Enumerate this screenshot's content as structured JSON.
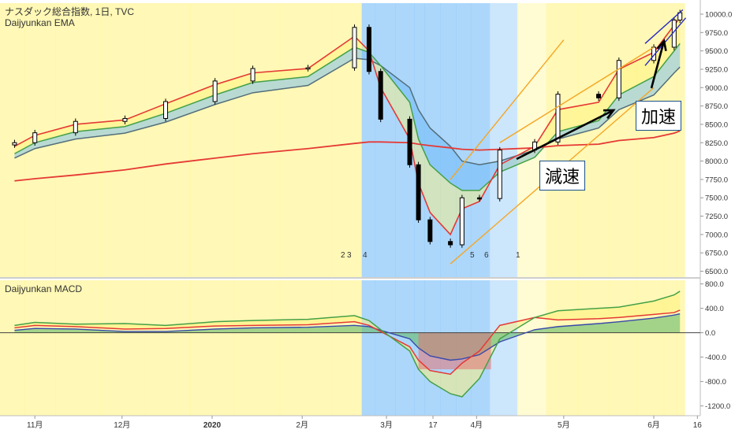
{
  "header": {
    "title": "ナスダック総合指数, 1日, TVC",
    "ema_label": "Daijyunkan EMA",
    "macd_label": "Daijyunkan MACD"
  },
  "annotations": {
    "decel": "減速",
    "accel": "加速",
    "stage_marks": [
      "2",
      "3",
      "4",
      "5",
      "6",
      "1"
    ]
  },
  "colors": {
    "stage_yellow": "#fff59d",
    "stage_blue": "#90caf9",
    "stage_lightblue": "#bbdefb",
    "stage_cream": "#fff9c4",
    "ema_short": "#e53935",
    "ema_mid": "#43a047",
    "ema_long": "#546e7a",
    "ema_200": "#e53935",
    "channel_orange": "#f5a623",
    "channel_blue": "#2929c4"
  },
  "chart_data": [
    {
      "type": "line",
      "title": "ナスダック総合指数, 1日, TVC",
      "indicator": "Daijyunkan EMA",
      "x_ticks": [
        "11月",
        "12月",
        "2020",
        "2月",
        "3月",
        "17",
        "4月",
        "5月",
        "6月",
        "16"
      ],
      "ylim": [
        6500,
        10000
      ],
      "y_ticks": [
        6500,
        6750,
        7000,
        7250,
        7500,
        7750,
        8000,
        8250,
        8500,
        8750,
        9000,
        9250,
        9500,
        9750,
        10000
      ],
      "dates": [
        "2019-10-25",
        "2019-11-01",
        "2019-11-15",
        "2019-12-02",
        "2019-12-16",
        "2020-01-02",
        "2020-01-15",
        "2020-02-03",
        "2020-02-19",
        "2020-02-24",
        "2020-02-28",
        "2020-03-09",
        "2020-03-12",
        "2020-03-16",
        "2020-03-23",
        "2020-03-27",
        "2020-04-02",
        "2020-04-09",
        "2020-04-21",
        "2020-04-29",
        "2020-05-13",
        "2020-05-20",
        "2020-06-01",
        "2020-06-08",
        "2020-06-10"
      ],
      "close": [
        8250,
        8385,
        8540,
        8580,
        8810,
        9090,
        9260,
        9270,
        9820,
        9220,
        8570,
        7950,
        7200,
        6905,
        6860,
        7500,
        7490,
        8150,
        8260,
        8910,
        8860,
        9370,
        9550,
        9920,
        10020
      ],
      "series": [
        {
          "name": "EMA short",
          "values": [
            8200,
            8350,
            8500,
            8560,
            8780,
            9040,
            9200,
            9260,
            9700,
            9500,
            9000,
            8300,
            7700,
            7300,
            7000,
            7350,
            7450,
            7950,
            8200,
            8700,
            8800,
            9250,
            9480,
            9850,
            9950
          ]
        },
        {
          "name": "EMA mid",
          "values": [
            8100,
            8250,
            8400,
            8470,
            8650,
            8900,
            9070,
            9150,
            9550,
            9480,
            9300,
            8800,
            8300,
            7950,
            7700,
            7600,
            7600,
            7850,
            8050,
            8400,
            8550,
            8900,
            9150,
            9500,
            9600
          ]
        },
        {
          "name": "EMA long",
          "values": [
            8040,
            8170,
            8300,
            8380,
            8530,
            8770,
            8930,
            9030,
            9400,
            9380,
            9300,
            9000,
            8700,
            8450,
            8200,
            8000,
            7950,
            8000,
            8150,
            8300,
            8450,
            8700,
            8900,
            9200,
            9280
          ]
        },
        {
          "name": "EMA 200",
          "values": [
            7730,
            7760,
            7810,
            7880,
            7960,
            8040,
            8100,
            8170,
            8240,
            8260,
            8260,
            8250,
            8230,
            8210,
            8180,
            8160,
            8150,
            8160,
            8180,
            8210,
            8230,
            8280,
            8320,
            8380,
            8410
          ]
        }
      ],
      "stages": [
        "yellow",
        "yellow",
        "yellow",
        "yellow",
        "yellow",
        "yellow",
        "yellow",
        "yellow",
        "yellow",
        "blue",
        "blue",
        "blue",
        "blue",
        "blue",
        "blue",
        "blue",
        "blue",
        "lightblue",
        "cream",
        "yellow",
        "yellow",
        "yellow",
        "yellow",
        "yellow",
        "yellow"
      ]
    },
    {
      "type": "area",
      "title": "Daijyunkan MACD",
      "ylim": [
        -1400,
        800
      ],
      "y_ticks": [
        -1200,
        -800,
        -400,
        0,
        400,
        800
      ],
      "y_tick_labels": [
        "-1200.0",
        "-800.0",
        "-400.0",
        "0.0",
        "400.0",
        "800.0"
      ],
      "series": [
        {
          "name": "MACD upper",
          "values": [
            120,
            170,
            140,
            150,
            120,
            180,
            200,
            220,
            280,
            200,
            50,
            -300,
            -600,
            -800,
            -1000,
            -1050,
            -750,
            -100,
            250,
            360,
            400,
            420,
            520,
            620,
            680
          ]
        },
        {
          "name": "MACD mid",
          "values": [
            80,
            120,
            100,
            60,
            70,
            110,
            120,
            130,
            180,
            120,
            20,
            -230,
            -450,
            -620,
            -680,
            -500,
            -300,
            120,
            250,
            210,
            230,
            250,
            300,
            330,
            370
          ]
        },
        {
          "name": "MACD lower",
          "values": [
            40,
            70,
            60,
            20,
            20,
            60,
            80,
            90,
            120,
            100,
            40,
            -100,
            -250,
            -380,
            -450,
            -430,
            -360,
            -150,
            50,
            100,
            150,
            180,
            240,
            290,
            310
          ]
        }
      ]
    }
  ]
}
